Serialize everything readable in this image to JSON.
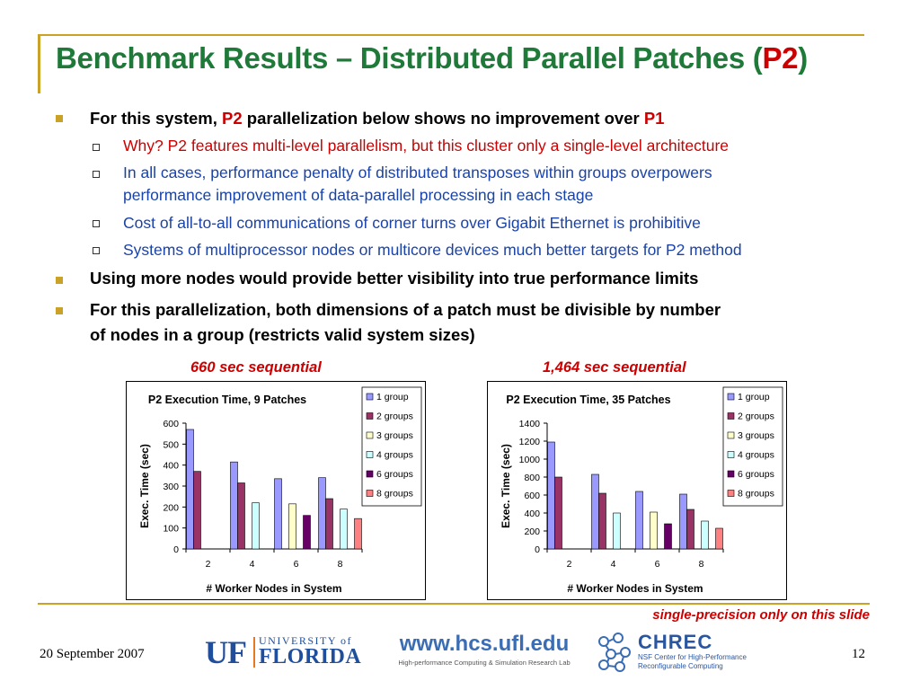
{
  "title": {
    "main": "Benchmark Results – Distributed Parallel Patches (",
    "highlight": "P2",
    "end": ")"
  },
  "bullets": {
    "b1": {
      "pre": "For this system, ",
      "hl1": "P2",
      "mid": " parallelization below shows no improvement over ",
      "hl2": "P1"
    },
    "sub1": "Why?  P2 features multi-level parallelism, but this cluster only a single-level architecture",
    "sub2a": "In all cases, performance penalty of distributed transposes within groups overpowers",
    "sub2b": "performance improvement of data-parallel processing in each stage",
    "sub3": "Cost of all-to-all communications of corner turns over Gigabit Ethernet is prohibitive",
    "sub4": "Systems of multiprocessor nodes or multicore devices much better targets for P2 method",
    "b2": "Using more nodes would provide better visibility into true performance limits",
    "b3a": "For this parallelization, both dimensions of a patch must be divisible by number",
    "b3b": "of nodes in a group (restricts valid system sizes)"
  },
  "captions": {
    "left": "660 sec sequential",
    "right": "1,464 sec sequential"
  },
  "note": "single-precision only on this slide",
  "footer": {
    "date": "20 September 2007",
    "page": "12",
    "uf_prefix": "UF",
    "uf_university": "UNIVERSITY of",
    "uf_florida": "FLORIDA",
    "hcs_url": "www.hcs.ufl.edu",
    "hcs_sub": "High-performance Computing & Simulation Research Lab",
    "chrec_name": "CHREC",
    "chrec_sub1": "NSF Center for High-Performance",
    "chrec_sub2": "Reconfigurable Computing"
  },
  "colors": {
    "title": "#1f7a3a",
    "highlight": "#cc0000",
    "subtext": "#1a43a8",
    "accent": "#c9a227",
    "series": [
      "#9999ff",
      "#993366",
      "#ffffcc",
      "#ccffff",
      "#660066",
      "#ff8080"
    ]
  },
  "chart_data": [
    {
      "type": "bar",
      "title": "P2 Execution Time, 9 Patches",
      "xlabel": "# Worker Nodes in System",
      "ylabel": "Exec. Time (sec)",
      "categories": [
        "2",
        "4",
        "6",
        "8"
      ],
      "ylim": [
        0,
        600
      ],
      "yticks": [
        0,
        100,
        200,
        300,
        400,
        500,
        600
      ],
      "legend": "top-right",
      "grid": false,
      "series": [
        {
          "name": "1 group",
          "values": [
            570,
            415,
            335,
            340
          ]
        },
        {
          "name": "2 groups",
          "values": [
            370,
            315,
            null,
            240
          ]
        },
        {
          "name": "3 groups",
          "values": [
            null,
            null,
            215,
            null
          ]
        },
        {
          "name": "4 groups",
          "values": [
            null,
            220,
            null,
            190
          ]
        },
        {
          "name": "6 groups",
          "values": [
            null,
            null,
            160,
            null
          ]
        },
        {
          "name": "8 groups",
          "values": [
            null,
            null,
            null,
            145
          ]
        }
      ]
    },
    {
      "type": "bar",
      "title": "P2 Execution Time, 35 Patches",
      "xlabel": "# Worker Nodes in System",
      "ylabel": "Exec. Time (sec)",
      "categories": [
        "2",
        "4",
        "6",
        "8"
      ],
      "ylim": [
        0,
        1400
      ],
      "yticks": [
        0,
        200,
        400,
        600,
        800,
        1000,
        1200,
        1400
      ],
      "legend": "top-right",
      "grid": false,
      "series": [
        {
          "name": "1 group",
          "values": [
            1190,
            830,
            640,
            610
          ]
        },
        {
          "name": "2 groups",
          "values": [
            800,
            620,
            null,
            440
          ]
        },
        {
          "name": "3 groups",
          "values": [
            null,
            null,
            410,
            null
          ]
        },
        {
          "name": "4 groups",
          "values": [
            null,
            400,
            null,
            310
          ]
        },
        {
          "name": "6 groups",
          "values": [
            null,
            null,
            280,
            null
          ]
        },
        {
          "name": "8 groups",
          "values": [
            null,
            null,
            null,
            230
          ]
        }
      ]
    }
  ]
}
